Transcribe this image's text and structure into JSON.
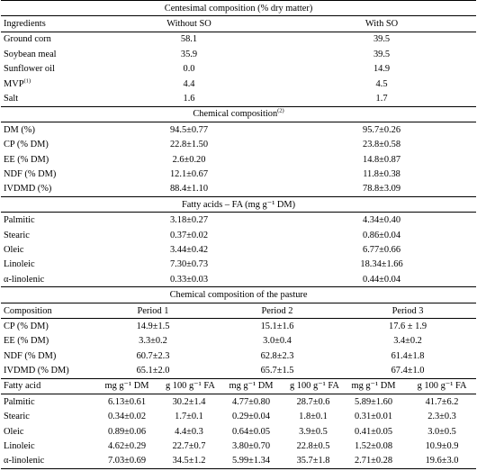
{
  "section1": {
    "title": "Centesimal composition (% dry matter)",
    "headers": [
      "Ingredients",
      "Without SO",
      "With SO"
    ],
    "rows": [
      {
        "label": "Ground corn",
        "sup": "",
        "a": "58.1",
        "b": "39.5"
      },
      {
        "label": "Soybean meal",
        "sup": "",
        "a": "35.9",
        "b": "39.5"
      },
      {
        "label": "Sunflower oil",
        "sup": "",
        "a": "0.0",
        "b": "14.9"
      },
      {
        "label": "MVP",
        "sup": "(1)",
        "a": "4.4",
        "b": "4.5"
      },
      {
        "label": "Salt",
        "sup": "",
        "a": "1.6",
        "b": "1.7"
      }
    ]
  },
  "section2": {
    "title": "Chemical composition",
    "title_sup": "(2)",
    "rows": [
      {
        "label": "DM (%)",
        "a": "94.5±0.77",
        "b": "95.7±0.26"
      },
      {
        "label": "CP (% DM)",
        "a": "22.8±1.50",
        "b": "23.8±0.58"
      },
      {
        "label": "EE (% DM)",
        "a": "2.6±0.20",
        "b": "14.8±0.87"
      },
      {
        "label": "NDF (% DM)",
        "a": "12.1±0.67",
        "b": "11.8±0.38"
      },
      {
        "label": "IVDMD (%)",
        "a": "88.4±1.10",
        "b": "78.8±3.09"
      }
    ]
  },
  "section3": {
    "title": "Fatty acids – FA (mg g⁻¹ DM)",
    "rows": [
      {
        "label": "Palmitic",
        "a": "3.18±0.27",
        "b": "4.34±0.40"
      },
      {
        "label": "Stearic",
        "a": "0.37±0.02",
        "b": "0.86±0.04"
      },
      {
        "label": "Oleic",
        "a": "3.44±0.42",
        "b": "6.77±0.66"
      },
      {
        "label": "Linoleic",
        "a": "7.30±0.73",
        "b": "18.34±1.66"
      },
      {
        "label": "α-linolenic",
        "a": "0.33±0.03",
        "b": "0.44±0.04"
      }
    ]
  },
  "section4": {
    "title": "Chemical composition of the pasture",
    "headers": [
      "Composition",
      "Period 1",
      "Period 2",
      "Period 3"
    ],
    "rows": [
      {
        "label": "CP (% DM)",
        "p1": "14.9±1.5",
        "p2": "15.1±1.6",
        "p3": "17.6 ± 1.9"
      },
      {
        "label": "EE (% DM)",
        "p1": "3.3±0.2",
        "p2": "3.0±0.4",
        "p3": "3.4±0.2"
      },
      {
        "label": "NDF (% DM)",
        "p1": "60.7±2.3",
        "p2": "62.8±2.3",
        "p3": "61.4±1.8"
      },
      {
        "label": "IVDMD (% DM)",
        "p1": "65.1±2.0",
        "p2": "65.7±1.5",
        "p3": "67.4±1.0"
      }
    ]
  },
  "section5": {
    "headers": [
      "Fatty acid",
      "mg g⁻¹ DM",
      "g 100 g⁻¹ FA",
      "mg g⁻¹ DM",
      "g 100 g⁻¹ FA",
      "mg g⁻¹ DM",
      "g 100 g⁻¹ FA"
    ],
    "rows": [
      {
        "label": "Palmitic",
        "v": [
          "6.13±0.61",
          "30.2±1.4",
          "4.77±0.80",
          "28.7±0.6",
          "5.89±1.60",
          "41.7±6.2"
        ]
      },
      {
        "label": "Stearic",
        "v": [
          "0.34±0.02",
          "1.7±0.1",
          "0.29±0.04",
          "1.8±0.1",
          "0.31±0.01",
          "2.3±0.3"
        ]
      },
      {
        "label": "Oleic",
        "v": [
          "0.89±0.06",
          "4.4±0.3",
          "0.64±0.05",
          "3.9±0.5",
          "0.41±0.05",
          "3.0±0.5"
        ]
      },
      {
        "label": "Linoleic",
        "v": [
          "4.62±0.29",
          "22.7±0.7",
          "3.80±0.70",
          "22.8±0.5",
          "1.52±0.08",
          "10.9±0.9"
        ]
      },
      {
        "label": "α-linolenic",
        "v": [
          "7.03±0.69",
          "34.5±1.2",
          "5.99±1.34",
          "35.7±1.8",
          "2.71±0.28",
          "19.6±3.0"
        ]
      }
    ]
  }
}
